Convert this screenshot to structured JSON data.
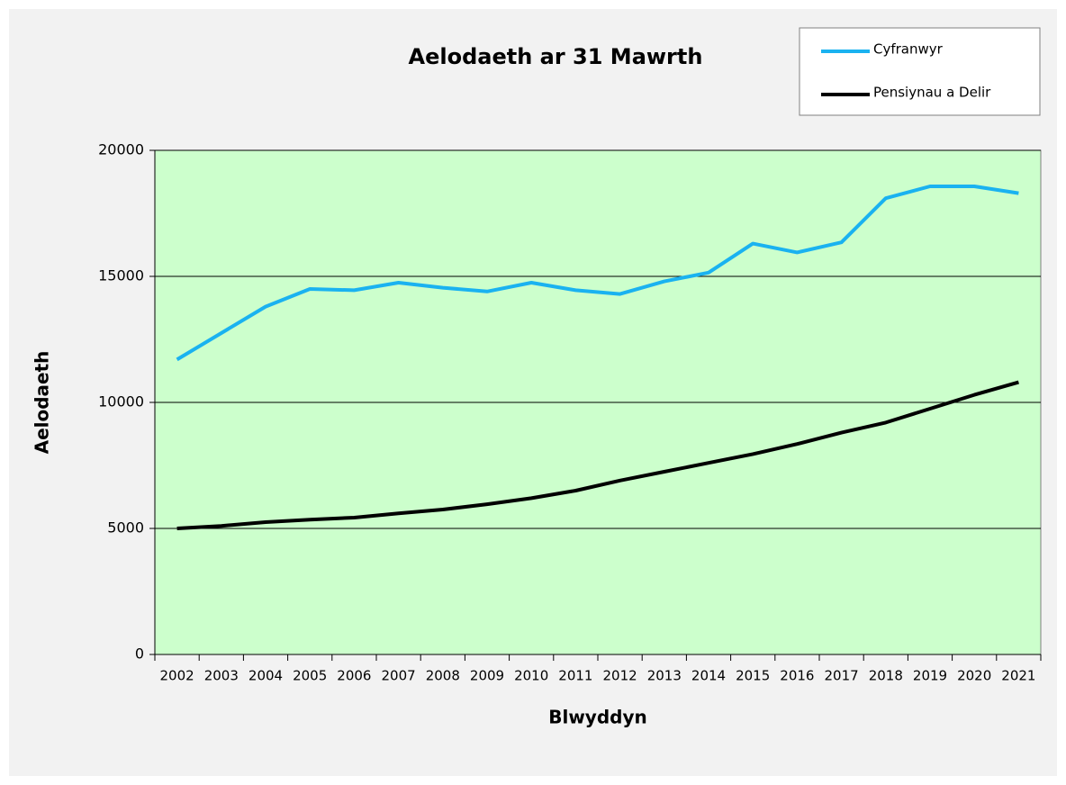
{
  "chart_data": {
    "type": "line",
    "title": "Aelodaeth ar 31 Mawrth",
    "x_label": "Blwyddyn",
    "y_label": "Aelodaeth",
    "categories": [
      "2002",
      "2003",
      "2004",
      "2005",
      "2006",
      "2007",
      "2008",
      "2009",
      "2010",
      "2011",
      "2012",
      "2013",
      "2014",
      "2015",
      "2016",
      "2017",
      "2018",
      "2019",
      "2020",
      "2021"
    ],
    "series": [
      {
        "name": "Cyfranwyr",
        "color": "#1ab2f0",
        "values": [
          11700,
          12750,
          13800,
          14500,
          14450,
          14750,
          14550,
          14400,
          14750,
          14450,
          14300,
          14800,
          15150,
          16300,
          15950,
          16350,
          18100,
          18570,
          18570,
          18300
        ]
      },
      {
        "name": "Pensiynau a Delir",
        "color": "#000000",
        "values": [
          5000,
          5100,
          5250,
          5350,
          5430,
          5600,
          5750,
          5960,
          6200,
          6500,
          6900,
          7250,
          7600,
          7950,
          8350,
          8800,
          9200,
          9750,
          10300,
          10800
        ]
      }
    ],
    "ylim": [
      0,
      20000
    ],
    "yticks": [
      0,
      5000,
      10000,
      15000,
      20000
    ],
    "grid": true,
    "legend": "top-right"
  }
}
